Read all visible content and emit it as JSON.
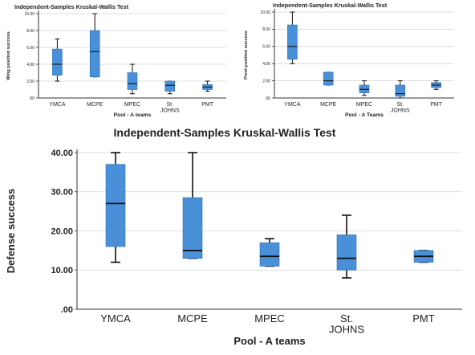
{
  "chart_data": [
    {
      "type": "boxplot",
      "title": "Independent-Samples Kruskal-Wallis Test",
      "xlabel": "Pool - A teams",
      "ylabel": "Wing position success",
      "ylim": [
        0,
        10
      ],
      "yticks": [
        0,
        2,
        4,
        6,
        8,
        10
      ],
      "ytick_labels": [
        ".00",
        "2.00",
        "4.00",
        "6.00",
        "8.00",
        "10.00"
      ],
      "categories": [
        "YMCA",
        "MCPE",
        "MPEC",
        "St. JOHNS",
        "PMT"
      ],
      "category_lines": [
        [
          "YMCA"
        ],
        [
          "MCPE"
        ],
        [
          "MPEC"
        ],
        [
          "St.",
          "JOHNS"
        ],
        [
          "PMT"
        ]
      ],
      "boxes": [
        {
          "min": 2,
          "q1": 2.7,
          "median": 4,
          "q3": 5.8,
          "max": 7
        },
        {
          "min": 2.5,
          "q1": 2.5,
          "median": 5.5,
          "q3": 8,
          "max": 10
        },
        {
          "min": 0.5,
          "q1": 1,
          "median": 1.7,
          "q3": 3,
          "max": 4
        },
        {
          "min": 0.5,
          "q1": 0.8,
          "median": 1.5,
          "q3": 2,
          "max": 2
        },
        {
          "min": 0.8,
          "q1": 1,
          "median": 1.3,
          "q3": 1.6,
          "max": 2
        }
      ],
      "grid": true
    },
    {
      "type": "boxplot",
      "title": "Independent-Samples Kruskal-Wallis Test",
      "xlabel": "Pool - A Teams",
      "ylabel": "Pivot position success",
      "ylim": [
        0,
        10
      ],
      "yticks": [
        0,
        2,
        4,
        6,
        8,
        10
      ],
      "ytick_labels": [
        ".00",
        "2.00",
        "4.00",
        "6.00",
        "8.00",
        "10.00"
      ],
      "categories": [
        "YMCA",
        "MCPE",
        "MPEC",
        "St. JOHNS",
        "PMT"
      ],
      "category_lines": [
        [
          "YMCA"
        ],
        [
          "MCPE"
        ],
        [
          "MPEC"
        ],
        [
          "St.",
          "JOHNS"
        ],
        [
          "PMT"
        ]
      ],
      "boxes": [
        {
          "min": 4,
          "q1": 4.5,
          "median": 6,
          "q3": 8.5,
          "max": 10
        },
        {
          "min": 1.5,
          "q1": 1.5,
          "median": 2,
          "q3": 3,
          "max": 3
        },
        {
          "min": 0.3,
          "q1": 0.6,
          "median": 1,
          "q3": 1.5,
          "max": 2
        },
        {
          "min": 0,
          "q1": 0.2,
          "median": 0.5,
          "q3": 1.5,
          "max": 2
        },
        {
          "min": 1,
          "q1": 1.2,
          "median": 1.5,
          "q3": 1.8,
          "max": 2
        }
      ],
      "grid": true
    },
    {
      "type": "boxplot",
      "title": "Independent-Samples Kruskal-Wallis Test",
      "xlabel": "Pool - A teams",
      "ylabel": "Defense success",
      "ylim": [
        0,
        40
      ],
      "yticks": [
        0,
        10,
        20,
        30,
        40
      ],
      "ytick_labels": [
        ".00",
        "10.00",
        "20.00",
        "30.00",
        "40.00"
      ],
      "categories": [
        "YMCA",
        "MCPE",
        "MPEC",
        "St. JOHNS",
        "PMT"
      ],
      "category_lines": [
        [
          "YMCA"
        ],
        [
          "MCPE"
        ],
        [
          "MPEC"
        ],
        [
          "St.",
          "JOHNS"
        ],
        [
          "PMT"
        ]
      ],
      "boxes": [
        {
          "min": 12,
          "q1": 16,
          "median": 27,
          "q3": 37,
          "max": 40
        },
        {
          "min": 13,
          "q1": 13,
          "median": 15,
          "q3": 28.5,
          "max": 40
        },
        {
          "min": 11,
          "q1": 11,
          "median": 13.5,
          "q3": 17,
          "max": 18
        },
        {
          "min": 8,
          "q1": 10,
          "median": 13,
          "q3": 19,
          "max": 24
        },
        {
          "min": 12,
          "q1": 12,
          "median": 13.5,
          "q3": 15,
          "max": 15
        }
      ],
      "grid": true
    }
  ],
  "style": {
    "box_fill": "#4a90d9",
    "box_stroke": "#2f6fb5",
    "whisker": "#111111",
    "grid": "#d4d4d4",
    "axis": "#333333",
    "text": "#222222"
  }
}
